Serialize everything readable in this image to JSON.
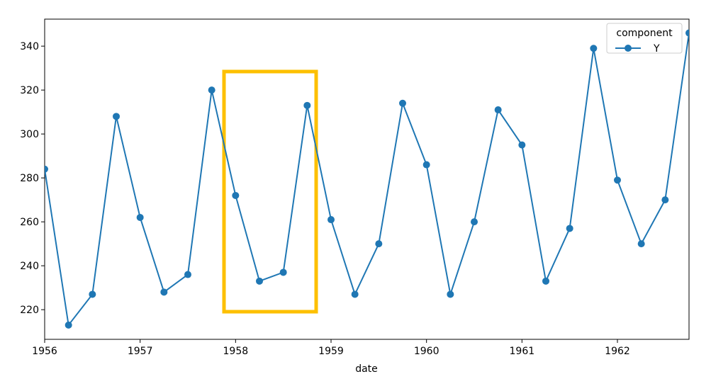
{
  "chart_data": {
    "type": "line",
    "xlabel": "date",
    "x": [
      1956,
      1956.25,
      1956.5,
      1956.75,
      1957,
      1957.25,
      1957.5,
      1957.75,
      1958,
      1958.25,
      1958.5,
      1958.75,
      1959,
      1959.25,
      1959.5,
      1959.75,
      1960,
      1960.25,
      1960.5,
      1960.75,
      1961,
      1961.25,
      1961.5,
      1961.75,
      1962,
      1962.25,
      1962.5,
      1962.75
    ],
    "series": [
      {
        "name": "Y",
        "color": "#1f77b4",
        "values": [
          284,
          213,
          227,
          308,
          262,
          228,
          236,
          320,
          272,
          233,
          237,
          313,
          261,
          227,
          250,
          314,
          286,
          227,
          260,
          311,
          295,
          233,
          257,
          339,
          279,
          250,
          270,
          346
        ]
      }
    ],
    "legend_title": "component",
    "legend": "upper right",
    "xlim": [
      1956,
      1962.75
    ],
    "xticks": [
      1956,
      1957,
      1958,
      1959,
      1960,
      1961,
      1962
    ],
    "ylim": [
      206.5,
      352.3
    ],
    "yticks": [
      220,
      240,
      260,
      280,
      300,
      320,
      340
    ]
  }
}
